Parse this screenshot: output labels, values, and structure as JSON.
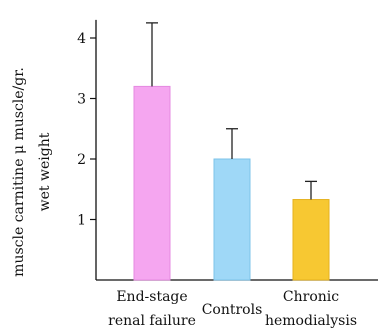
{
  "chart_data": {
    "type": "bar",
    "title": "",
    "xlabel": "",
    "ylabel_lines": [
      "muscle carnitine μ muscle/gr.",
      "wet weight"
    ],
    "ylim": [
      0,
      4.3
    ],
    "yticks": [
      1,
      2,
      3,
      4
    ],
    "categories": [
      [
        "End-stage",
        "renal failure"
      ],
      [
        "Controls"
      ],
      [
        "Chronic",
        "hemodialysis"
      ]
    ],
    "values": [
      3.2,
      2.0,
      1.33
    ],
    "errors": [
      1.05,
      0.5,
      0.3
    ],
    "bar_colors": [
      "#f5a6f0",
      "#9fd8f7",
      "#f7c832"
    ],
    "bar_edge_colors": [
      "#e58ae0",
      "#7cc3ea",
      "#e6b21e"
    ],
    "grid": false,
    "legend": "none"
  }
}
